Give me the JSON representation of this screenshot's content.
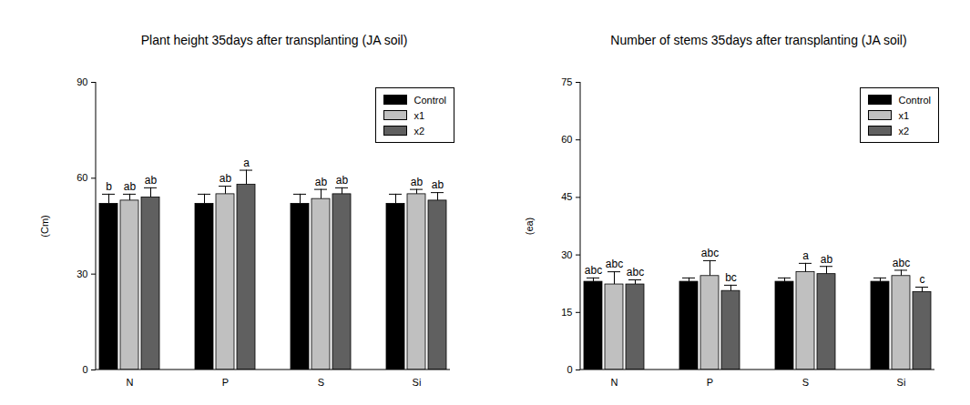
{
  "chart_data": [
    {
      "type": "bar",
      "title": "Plant height 35days after transplanting (JA soil)",
      "ylabel": "(Cm)",
      "categories": [
        "N",
        "P",
        "S",
        "Si"
      ],
      "series": [
        {
          "name": "Control",
          "color": "#000000",
          "values": [
            52,
            52,
            52,
            52
          ],
          "errors": [
            3,
            3,
            3,
            3
          ],
          "labels": [
            "b",
            null,
            null,
            null
          ]
        },
        {
          "name": "x1",
          "color": "#c0c0c0",
          "values": [
            53,
            55,
            53.5,
            55
          ],
          "errors": [
            2,
            2.5,
            3,
            1.5
          ],
          "labels": [
            "ab",
            "ab",
            "ab",
            "ab"
          ]
        },
        {
          "name": "x2",
          "color": "#606060",
          "values": [
            54,
            58,
            55,
            53
          ],
          "errors": [
            3,
            4.5,
            2,
            2.5
          ],
          "labels": [
            "ab",
            "a",
            "ab",
            "ab"
          ]
        }
      ],
      "ylim": [
        0,
        90
      ],
      "yticks": [
        0,
        30,
        60,
        90
      ],
      "legend": "top-right"
    },
    {
      "type": "bar",
      "title": "Number of stems 35days after transplanting (JA soil)",
      "ylabel": "(ea)",
      "categories": [
        "N",
        "P",
        "S",
        "Si"
      ],
      "series": [
        {
          "name": "Control",
          "color": "#000000",
          "values": [
            23,
            23,
            23,
            23
          ],
          "errors": [
            1,
            1,
            1,
            1
          ],
          "labels": [
            "abc",
            null,
            null,
            null
          ]
        },
        {
          "name": "x1",
          "color": "#c0c0c0",
          "values": [
            22.3,
            24.5,
            25.5,
            24.5
          ],
          "errors": [
            3.3,
            4,
            2.3,
            1.5
          ],
          "labels": [
            "abc",
            "abc",
            "a",
            "abc"
          ]
        },
        {
          "name": "x2",
          "color": "#606060",
          "values": [
            22.3,
            20.6,
            25,
            20.3
          ],
          "errors": [
            1.2,
            1.5,
            2,
            1.3
          ],
          "labels": [
            "abc",
            "bc",
            "ab",
            "c"
          ]
        }
      ],
      "ylim": [
        0,
        75
      ],
      "yticks": [
        0,
        15,
        30,
        45,
        60,
        75
      ],
      "legend": "top-right"
    }
  ]
}
